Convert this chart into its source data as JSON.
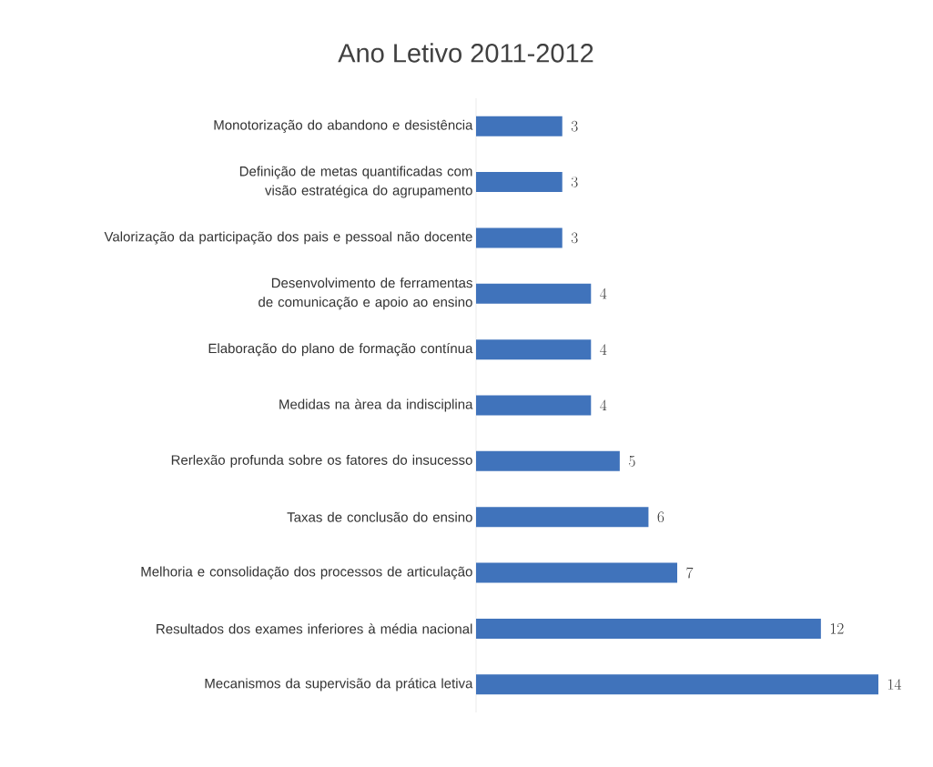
{
  "chart_data": {
    "type": "bar",
    "orientation": "horizontal",
    "title": "Ano Letivo 2011-2012",
    "categories": [
      "Monotorização do abandono e desistência",
      "Definição de metas quantificadas com visão estratégica do agrupamento",
      "Valorização da participação dos pais e pessoal não docente",
      "Desenvolvimento de ferramentas de comunicação e apoio ao ensino",
      "Elaboração do plano de formação contínua",
      "Medidas na àrea da indisciplina",
      "Rerlexão profunda sobre os fatores do insucesso",
      "Taxas de conclusão do ensino",
      "Melhoria e consolidação dos processos de articulação",
      "Resultados dos exames inferiores à média nacional",
      "Mecanismos da supervisão da prática letiva"
    ],
    "values": [
      3,
      3,
      3,
      4,
      4,
      4,
      5,
      6,
      7,
      12,
      14
    ],
    "color": "#4073bb",
    "data_labels": true
  }
}
